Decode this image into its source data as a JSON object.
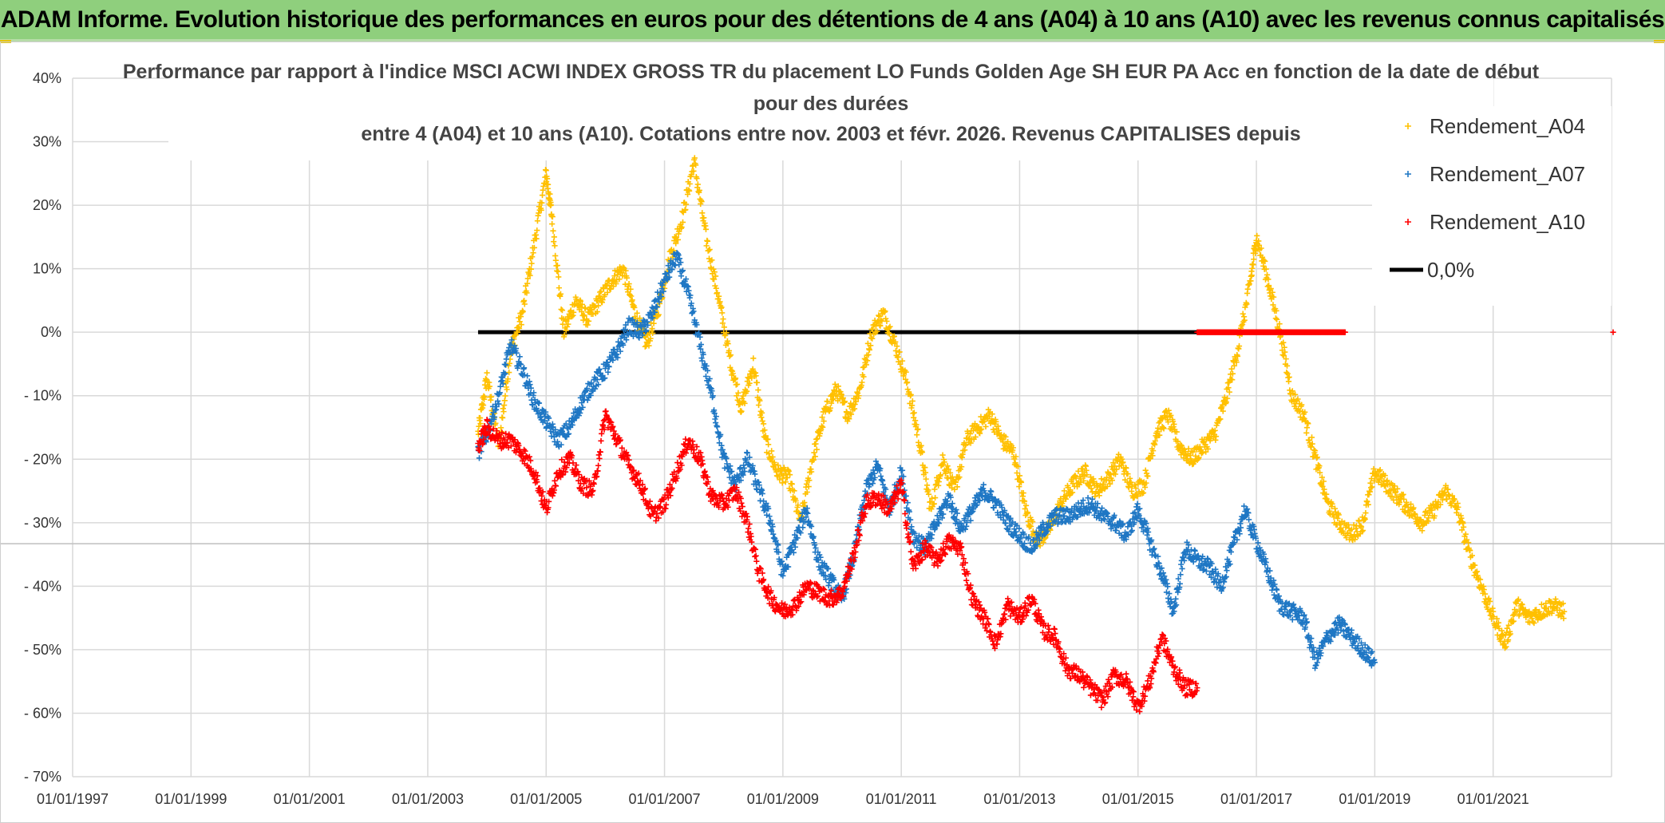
{
  "banner": {
    "title": "ADAM Informe. Evolution historique des performances en euros pour des détentions de 4 ans (A04) à 10 ans (A10) avec les revenus connus capitalisés"
  },
  "colors": {
    "banner_bg": "#8fcf7d",
    "a04": "#ffc000",
    "a07": "#1f77c4",
    "a10": "#ff0000",
    "zero": "#000000",
    "grid": "#d9d9d9"
  },
  "chart_data": {
    "type": "scatter",
    "title_lines": [
      "Performance par rapport à l'indice MSCI ACWI INDEX GROSS TR  du placement LO Funds Golden Age SH EUR PA Acc en fonction de la date de début",
      "pour des durées",
      "entre 4 (A04) et 10 ans (A10). Cotations entre nov. 2003 et févr. 2026. Revenus CAPITALISES depuis"
    ],
    "xlabel": "",
    "ylabel": "",
    "xlim": [
      1997.0,
      2023.0
    ],
    "ylim": [
      -70,
      40
    ],
    "y_ticks": [
      40,
      30,
      20,
      10,
      0,
      -10,
      -20,
      -30,
      -40,
      -50,
      -60,
      -70
    ],
    "y_tick_labels": [
      "40%",
      "30%",
      "20%",
      "10%",
      "0%",
      "- 10%",
      "- 20%",
      "- 30%",
      "- 40%",
      "- 50%",
      "- 60%",
      "- 70%"
    ],
    "x_ticks": [
      1997,
      1999,
      2001,
      2003,
      2005,
      2007,
      2009,
      2011,
      2013,
      2015,
      2017,
      2019,
      2021
    ],
    "x_tick_labels": [
      "01/01/1997",
      "01/01/1999",
      "01/01/2001",
      "01/01/2003",
      "01/01/2005",
      "01/01/2007",
      "01/01/2009",
      "01/01/2011",
      "01/01/2013",
      "01/01/2015",
      "01/01/2017",
      "01/01/2019",
      "01/01/2021"
    ],
    "legend": [
      "Rendement_A04",
      "Rendement_A07",
      "Rendement_A10",
      "0,0%"
    ],
    "legend_position": "top-right",
    "series": [
      {
        "name": "Rendement_A04",
        "marker": "+",
        "x": [
          2003.85,
          2004.0,
          2004.2,
          2004.4,
          2004.6,
          2004.8,
          2005.0,
          2005.1,
          2005.3,
          2005.5,
          2005.7,
          2005.9,
          2006.1,
          2006.3,
          2006.5,
          2006.7,
          2006.9,
          2007.1,
          2007.3,
          2007.5,
          2007.7,
          2007.9,
          2008.1,
          2008.3,
          2008.5,
          2008.7,
          2008.9,
          2009.1,
          2009.3,
          2009.5,
          2009.7,
          2009.9,
          2010.1,
          2010.3,
          2010.5,
          2010.7,
          2010.9,
          2011.1,
          2011.3,
          2011.5,
          2011.7,
          2011.9,
          2012.1,
          2012.3,
          2012.5,
          2012.7,
          2012.9,
          2013.1,
          2013.3,
          2013.5,
          2013.7,
          2013.9,
          2014.1,
          2014.3,
          2014.5,
          2014.7,
          2014.9,
          2015.1,
          2015.3,
          2015.5,
          2015.7,
          2015.9,
          2016.1,
          2016.3,
          2016.5,
          2016.7,
          2016.9,
          2017.0,
          2017.2,
          2017.4,
          2017.6,
          2017.8,
          2018.0,
          2018.2,
          2018.4,
          2018.6,
          2018.8,
          2019.0,
          2019.2,
          2019.4,
          2019.6,
          2019.8,
          2020.0,
          2020.2,
          2020.4,
          2020.6,
          2020.8,
          2021.0,
          2021.2,
          2021.4,
          2021.6,
          2021.8,
          2022.0,
          2022.2
        ],
        "values": [
          -16,
          -7,
          -18,
          -3,
          3,
          14,
          25,
          18,
          0,
          5,
          2,
          5,
          8,
          10,
          3,
          -2,
          4,
          12,
          18,
          27,
          15,
          6,
          -4,
          -12,
          -5,
          -17,
          -22,
          -23,
          -30,
          -20,
          -13,
          -9,
          -13,
          -9,
          0,
          3,
          -2,
          -8,
          -17,
          -28,
          -20,
          -25,
          -17,
          -15,
          -13,
          -17,
          -19,
          -28,
          -33,
          -31,
          -27,
          -24,
          -22,
          -25,
          -23,
          -20,
          -25,
          -24,
          -16,
          -13,
          -18,
          -20,
          -18,
          -16,
          -10,
          -2,
          8,
          15,
          8,
          0,
          -10,
          -13,
          -20,
          -27,
          -30,
          -32,
          -30,
          -22,
          -24,
          -26,
          -28,
          -30,
          -28,
          -25,
          -28,
          -35,
          -40,
          -45,
          -49,
          -43,
          -45,
          -44,
          -43,
          -44
        ]
      },
      {
        "name": "Rendement_A07",
        "marker": "+",
        "x": [
          2003.85,
          2004.0,
          2004.2,
          2004.4,
          2004.6,
          2004.8,
          2005.0,
          2005.2,
          2005.4,
          2005.6,
          2005.8,
          2006.0,
          2006.2,
          2006.4,
          2006.6,
          2006.8,
          2007.0,
          2007.2,
          2007.4,
          2007.6,
          2007.8,
          2008.0,
          2008.2,
          2008.4,
          2008.6,
          2008.8,
          2009.0,
          2009.2,
          2009.4,
          2009.6,
          2009.8,
          2010.0,
          2010.2,
          2010.4,
          2010.6,
          2010.8,
          2011.0,
          2011.2,
          2011.4,
          2011.6,
          2011.8,
          2012.0,
          2012.2,
          2012.4,
          2012.6,
          2012.8,
          2013.0,
          2013.2,
          2013.4,
          2013.6,
          2013.8,
          2014.0,
          2014.2,
          2014.4,
          2014.6,
          2014.8,
          2015.0,
          2015.2,
          2015.4,
          2015.6,
          2015.8,
          2016.0,
          2016.2,
          2016.4,
          2016.6,
          2016.8,
          2017.0,
          2017.2,
          2017.4,
          2017.6,
          2017.8,
          2018.0,
          2018.2,
          2018.4,
          2018.6,
          2018.8,
          2019.0
        ],
        "values": [
          -19,
          -16,
          -10,
          -2,
          -6,
          -11,
          -14,
          -17,
          -15,
          -11,
          -8,
          -6,
          -3,
          1,
          0,
          3,
          8,
          12,
          6,
          -2,
          -10,
          -20,
          -24,
          -20,
          -25,
          -30,
          -38,
          -33,
          -28,
          -36,
          -39,
          -42,
          -35,
          -25,
          -21,
          -28,
          -22,
          -32,
          -34,
          -30,
          -26,
          -31,
          -28,
          -25,
          -27,
          -30,
          -32,
          -34,
          -31,
          -29,
          -29,
          -28,
          -27,
          -29,
          -30,
          -32,
          -28,
          -33,
          -38,
          -44,
          -34,
          -36,
          -37,
          -40,
          -34,
          -28,
          -33,
          -38,
          -43,
          -44,
          -45,
          -52,
          -48,
          -46,
          -48,
          -50,
          -52
        ]
      },
      {
        "name": "Rendement_A10",
        "marker": "+",
        "x": [
          2003.85,
          2004.0,
          2004.2,
          2004.4,
          2004.6,
          2004.8,
          2005.0,
          2005.2,
          2005.4,
          2005.6,
          2005.8,
          2006.0,
          2006.2,
          2006.4,
          2006.6,
          2006.8,
          2007.0,
          2007.2,
          2007.4,
          2007.6,
          2007.8,
          2008.0,
          2008.2,
          2008.4,
          2008.6,
          2008.8,
          2009.0,
          2009.2,
          2009.4,
          2009.6,
          2009.8,
          2010.0,
          2010.2,
          2010.4,
          2010.6,
          2010.8,
          2011.0,
          2011.2,
          2011.4,
          2011.6,
          2011.8,
          2012.0,
          2012.2,
          2012.4,
          2012.6,
          2012.8,
          2013.0,
          2013.2,
          2013.4,
          2013.6,
          2013.8,
          2014.0,
          2014.2,
          2014.4,
          2014.6,
          2014.8,
          2015.0,
          2015.2,
          2015.4,
          2015.6,
          2015.8,
          2016.0
        ],
        "values": [
          -18,
          -15,
          -17,
          -17,
          -19,
          -22,
          -28,
          -22,
          -20,
          -24,
          -25,
          -13,
          -17,
          -21,
          -24,
          -29,
          -27,
          -22,
          -17,
          -20,
          -26,
          -27,
          -25,
          -30,
          -38,
          -42,
          -44,
          -43,
          -40,
          -41,
          -42,
          -41,
          -35,
          -27,
          -26,
          -28,
          -24,
          -37,
          -34,
          -36,
          -33,
          -34,
          -42,
          -45,
          -49,
          -43,
          -45,
          -42,
          -47,
          -48,
          -53,
          -54,
          -56,
          -58,
          -54,
          -55,
          -59,
          -55,
          -48,
          -53,
          -56,
          -56
        ]
      },
      {
        "name": "0,0%",
        "marker": "line",
        "x": [
          2003.85,
          2016.0
        ],
        "values": [
          0,
          0
        ]
      },
      {
        "name": "Rendement_A10",
        "marker": "+",
        "note": "zero band",
        "x": [
          2016.0,
          2016.5,
          2017.0,
          2017.5,
          2018.0,
          2018.5
        ],
        "values": [
          0,
          0,
          0,
          0,
          0,
          0
        ]
      }
    ]
  }
}
